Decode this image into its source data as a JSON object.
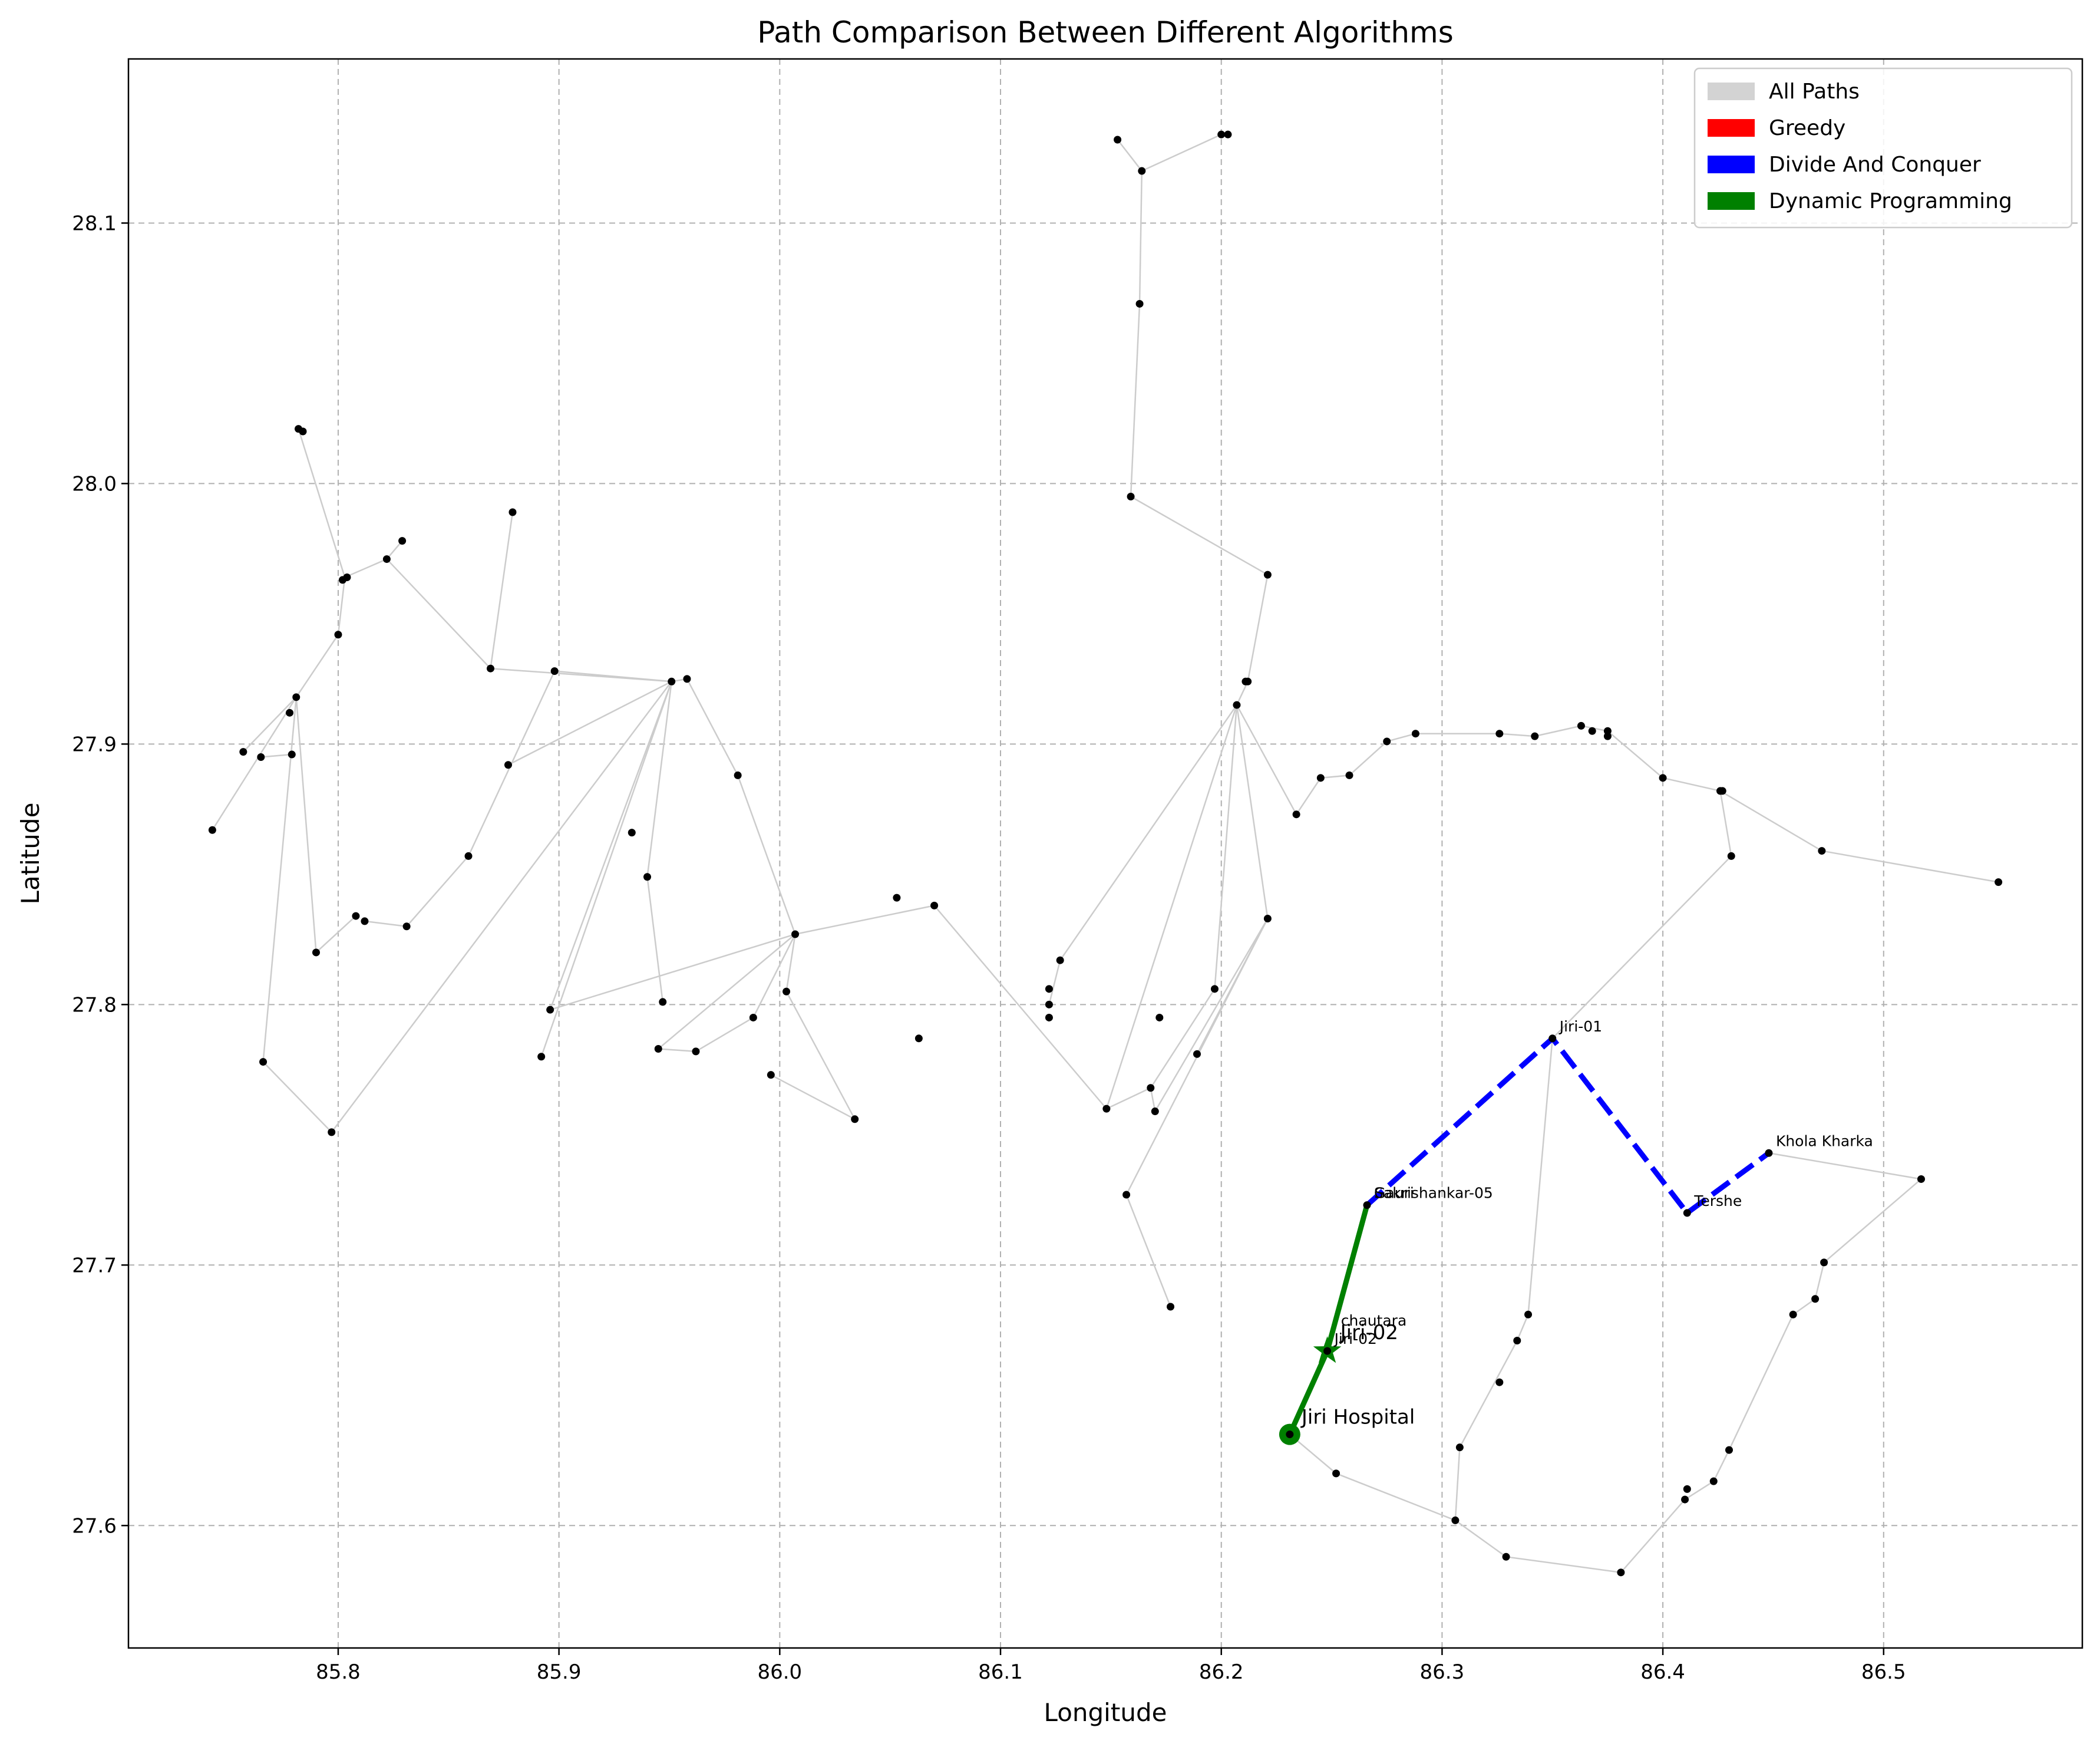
{
  "chart_data": {
    "type": "line",
    "title": "Path Comparison Between Different Algorithms",
    "xlabel": "Longitude",
    "ylabel": "Latitude",
    "xlim": [
      85.705,
      86.59
    ],
    "ylim": [
      27.553,
      28.163
    ],
    "xticks": [
      85.8,
      85.9,
      86.0,
      86.1,
      86.2,
      86.3,
      86.4,
      86.5
    ],
    "yticks": [
      27.6,
      27.7,
      27.8,
      27.9,
      28.0,
      28.1
    ],
    "xtick_labels": [
      "85.8",
      "85.9",
      "86.0",
      "86.1",
      "86.2",
      "86.3",
      "86.4",
      "86.5"
    ],
    "ytick_labels": [
      "27.6",
      "27.7",
      "27.8",
      "27.9",
      "28.0",
      "28.1"
    ],
    "grid": true,
    "legend_position": "top-right",
    "legend": [
      {
        "label": "All Paths",
        "color": "#d3d3d3"
      },
      {
        "label": "Greedy",
        "color": "#ff0000"
      },
      {
        "label": "Divide And Conquer",
        "color": "#0000ff"
      },
      {
        "label": "Dynamic Programming",
        "color": "#008000"
      }
    ],
    "colors": {
      "all_paths": "#cccccc",
      "greedy": "#ff0000",
      "divide_and_conquer": "#0000ff",
      "dynamic_programming": "#008000",
      "node": "#000000",
      "grid": "#b0b0b0"
    },
    "nodes": [
      [
        85.782,
        28.021
      ],
      [
        85.784,
        28.02
      ],
      [
        85.743,
        27.867
      ],
      [
        85.757,
        27.897
      ],
      [
        85.765,
        27.895
      ],
      [
        85.779,
        27.896
      ],
      [
        85.778,
        27.912
      ],
      [
        85.781,
        27.918
      ],
      [
        85.766,
        27.778
      ],
      [
        85.79,
        27.82
      ],
      [
        85.797,
        27.751
      ],
      [
        85.8,
        27.942
      ],
      [
        85.802,
        27.963
      ],
      [
        85.804,
        27.964
      ],
      [
        85.822,
        27.971
      ],
      [
        85.829,
        27.978
      ],
      [
        85.808,
        27.834
      ],
      [
        85.812,
        27.832
      ],
      [
        85.831,
        27.83
      ],
      [
        85.859,
        27.857
      ],
      [
        85.869,
        27.929
      ],
      [
        85.879,
        27.989
      ],
      [
        85.877,
        27.892
      ],
      [
        85.898,
        27.928
      ],
      [
        85.951,
        27.924
      ],
      [
        85.958,
        27.925
      ],
      [
        85.981,
        27.888
      ],
      [
        85.933,
        27.866
      ],
      [
        85.94,
        27.849
      ],
      [
        85.947,
        27.801
      ],
      [
        85.945,
        27.783
      ],
      [
        85.962,
        27.782
      ],
      [
        85.988,
        27.795
      ],
      [
        85.996,
        27.773
      ],
      [
        85.896,
        27.798
      ],
      [
        85.892,
        27.78
      ],
      [
        86.007,
        27.827
      ],
      [
        86.003,
        27.805
      ],
      [
        86.034,
        27.756
      ],
      [
        86.053,
        27.841
      ],
      [
        86.07,
        27.838
      ],
      [
        86.063,
        27.787
      ],
      [
        86.127,
        27.817
      ],
      [
        86.122,
        27.806
      ],
      [
        86.122,
        27.8
      ],
      [
        86.122,
        27.795
      ],
      [
        86.148,
        27.76
      ],
      [
        86.157,
        27.727
      ],
      [
        86.177,
        27.684
      ],
      [
        86.168,
        27.768
      ],
      [
        86.17,
        27.759
      ],
      [
        86.172,
        27.795
      ],
      [
        86.189,
        27.781
      ],
      [
        86.197,
        27.806
      ],
      [
        86.207,
        27.915
      ],
      [
        86.211,
        27.924
      ],
      [
        86.212,
        27.924
      ],
      [
        86.221,
        27.833
      ],
      [
        86.221,
        27.965
      ],
      [
        86.159,
        27.995
      ],
      [
        86.163,
        28.069
      ],
      [
        86.164,
        28.12
      ],
      [
        86.153,
        28.132
      ],
      [
        86.2,
        28.134
      ],
      [
        86.203,
        28.134
      ],
      [
        86.234,
        27.873
      ],
      [
        86.245,
        27.887
      ],
      [
        86.258,
        27.888
      ],
      [
        86.275,
        27.901
      ],
      [
        86.288,
        27.904
      ],
      [
        86.326,
        27.904
      ],
      [
        86.342,
        27.903
      ],
      [
        86.363,
        27.907
      ],
      [
        86.368,
        27.905
      ],
      [
        86.375,
        27.903
      ],
      [
        86.375,
        27.905
      ],
      [
        86.4,
        27.887
      ],
      [
        86.426,
        27.882
      ],
      [
        86.427,
        27.882
      ],
      [
        86.431,
        27.857
      ],
      [
        86.472,
        27.859
      ],
      [
        86.552,
        27.847
      ],
      [
        86.517,
        27.733
      ],
      [
        86.448,
        27.743
      ],
      [
        86.473,
        27.701
      ],
      [
        86.469,
        27.687
      ],
      [
        86.459,
        27.681
      ],
      [
        86.43,
        27.629
      ],
      [
        86.423,
        27.617
      ],
      [
        86.411,
        27.614
      ],
      [
        86.41,
        27.61
      ],
      [
        86.381,
        27.582
      ],
      [
        86.329,
        27.588
      ],
      [
        86.306,
        27.602
      ],
      [
        86.308,
        27.63
      ],
      [
        86.326,
        27.655
      ],
      [
        86.334,
        27.671
      ],
      [
        86.339,
        27.681
      ],
      [
        86.252,
        27.62
      ],
      [
        86.231,
        27.635
      ],
      [
        86.248,
        27.667
      ],
      [
        86.266,
        27.723
      ],
      [
        86.35,
        27.787
      ],
      [
        86.411,
        27.72
      ]
    ],
    "edges": [
      [
        [
          85.782,
          28.021
        ],
        [
          85.803,
          27.964
        ]
      ],
      [
        [
          85.803,
          27.964
        ],
        [
          85.8,
          27.942
        ]
      ],
      [
        [
          85.8,
          27.942
        ],
        [
          85.781,
          27.918
        ]
      ],
      [
        [
          85.781,
          27.918
        ],
        [
          85.743,
          27.867
        ]
      ],
      [
        [
          85.781,
          27.918
        ],
        [
          85.757,
          27.897
        ]
      ],
      [
        [
          85.781,
          27.918
        ],
        [
          85.766,
          27.778
        ]
      ],
      [
        [
          85.781,
          27.918
        ],
        [
          85.79,
          27.82
        ]
      ],
      [
        [
          85.765,
          27.895
        ],
        [
          85.779,
          27.896
        ]
      ],
      [
        [
          85.766,
          27.778
        ],
        [
          85.797,
          27.751
        ]
      ],
      [
        [
          85.797,
          27.751
        ],
        [
          85.951,
          27.924
        ]
      ],
      [
        [
          85.79,
          27.82
        ],
        [
          85.808,
          27.834
        ]
      ],
      [
        [
          85.812,
          27.832
        ],
        [
          85.831,
          27.83
        ]
      ],
      [
        [
          85.831,
          27.83
        ],
        [
          85.859,
          27.857
        ]
      ],
      [
        [
          85.859,
          27.857
        ],
        [
          85.898,
          27.928
        ]
      ],
      [
        [
          85.803,
          27.964
        ],
        [
          85.822,
          27.971
        ]
      ],
      [
        [
          85.822,
          27.971
        ],
        [
          85.869,
          27.929
        ]
      ],
      [
        [
          85.822,
          27.971
        ],
        [
          85.829,
          27.978
        ]
      ],
      [
        [
          85.869,
          27.929
        ],
        [
          85.879,
          27.989
        ]
      ],
      [
        [
          85.869,
          27.929
        ],
        [
          85.951,
          27.924
        ]
      ],
      [
        [
          85.898,
          27.928
        ],
        [
          85.951,
          27.924
        ]
      ],
      [
        [
          85.877,
          27.892
        ],
        [
          85.951,
          27.924
        ]
      ],
      [
        [
          85.951,
          27.924
        ],
        [
          85.958,
          27.925
        ]
      ],
      [
        [
          85.958,
          27.925
        ],
        [
          85.981,
          27.888
        ]
      ],
      [
        [
          85.981,
          27.888
        ],
        [
          86.007,
          27.827
        ]
      ],
      [
        [
          85.951,
          27.924
        ],
        [
          85.94,
          27.849
        ]
      ],
      [
        [
          85.94,
          27.849
        ],
        [
          85.947,
          27.801
        ]
      ],
      [
        [
          85.951,
          27.924
        ],
        [
          85.896,
          27.798
        ]
      ],
      [
        [
          85.951,
          27.924
        ],
        [
          85.892,
          27.78
        ]
      ],
      [
        [
          85.896,
          27.798
        ],
        [
          86.007,
          27.827
        ]
      ],
      [
        [
          86.007,
          27.827
        ],
        [
          85.945,
          27.783
        ]
      ],
      [
        [
          85.945,
          27.783
        ],
        [
          85.962,
          27.782
        ]
      ],
      [
        [
          86.007,
          27.827
        ],
        [
          85.988,
          27.795
        ]
      ],
      [
        [
          85.988,
          27.795
        ],
        [
          85.962,
          27.782
        ]
      ],
      [
        [
          86.007,
          27.827
        ],
        [
          86.003,
          27.805
        ]
      ],
      [
        [
          86.003,
          27.805
        ],
        [
          86.034,
          27.756
        ]
      ],
      [
        [
          86.034,
          27.756
        ],
        [
          85.996,
          27.773
        ]
      ],
      [
        [
          86.007,
          27.827
        ],
        [
          86.07,
          27.838
        ]
      ],
      [
        [
          86.07,
          27.838
        ],
        [
          86.148,
          27.76
        ]
      ],
      [
        [
          86.148,
          27.76
        ],
        [
          86.207,
          27.915
        ]
      ],
      [
        [
          86.207,
          27.915
        ],
        [
          86.127,
          27.817
        ]
      ],
      [
        [
          86.127,
          27.817
        ],
        [
          86.122,
          27.8
        ]
      ],
      [
        [
          86.207,
          27.915
        ],
        [
          86.212,
          27.924
        ]
      ],
      [
        [
          86.212,
          27.924
        ],
        [
          86.221,
          27.965
        ]
      ],
      [
        [
          86.221,
          27.965
        ],
        [
          86.159,
          27.995
        ]
      ],
      [
        [
          86.159,
          27.995
        ],
        [
          86.163,
          28.069
        ]
      ],
      [
        [
          86.163,
          28.069
        ],
        [
          86.164,
          28.12
        ]
      ],
      [
        [
          86.164,
          28.12
        ],
        [
          86.153,
          28.132
        ]
      ],
      [
        [
          86.164,
          28.12
        ],
        [
          86.2,
          28.134
        ]
      ],
      [
        [
          86.207,
          27.915
        ],
        [
          86.221,
          27.833
        ]
      ],
      [
        [
          86.221,
          27.833
        ],
        [
          86.17,
          27.759
        ]
      ],
      [
        [
          86.221,
          27.833
        ],
        [
          86.157,
          27.727
        ]
      ],
      [
        [
          86.157,
          27.727
        ],
        [
          86.177,
          27.684
        ]
      ],
      [
        [
          86.17,
          27.759
        ],
        [
          86.168,
          27.768
        ]
      ],
      [
        [
          86.148,
          27.76
        ],
        [
          86.168,
          27.768
        ]
      ],
      [
        [
          86.168,
          27.768
        ],
        [
          86.197,
          27.806
        ]
      ],
      [
        [
          86.207,
          27.915
        ],
        [
          86.197,
          27.806
        ]
      ],
      [
        [
          86.221,
          27.833
        ],
        [
          86.189,
          27.781
        ]
      ],
      [
        [
          86.207,
          27.915
        ],
        [
          86.234,
          27.873
        ]
      ],
      [
        [
          86.234,
          27.873
        ],
        [
          86.245,
          27.887
        ]
      ],
      [
        [
          86.245,
          27.887
        ],
        [
          86.258,
          27.888
        ]
      ],
      [
        [
          86.258,
          27.888
        ],
        [
          86.275,
          27.901
        ]
      ],
      [
        [
          86.275,
          27.901
        ],
        [
          86.288,
          27.904
        ]
      ],
      [
        [
          86.288,
          27.904
        ],
        [
          86.326,
          27.904
        ]
      ],
      [
        [
          86.326,
          27.904
        ],
        [
          86.342,
          27.903
        ]
      ],
      [
        [
          86.342,
          27.903
        ],
        [
          86.363,
          27.907
        ]
      ],
      [
        [
          86.363,
          27.907
        ],
        [
          86.375,
          27.905
        ]
      ],
      [
        [
          86.375,
          27.905
        ],
        [
          86.4,
          27.887
        ]
      ],
      [
        [
          86.4,
          27.887
        ],
        [
          86.426,
          27.882
        ]
      ],
      [
        [
          86.426,
          27.882
        ],
        [
          86.431,
          27.857
        ]
      ],
      [
        [
          86.426,
          27.882
        ],
        [
          86.472,
          27.859
        ]
      ],
      [
        [
          86.472,
          27.859
        ],
        [
          86.552,
          27.847
        ]
      ],
      [
        [
          86.431,
          27.857
        ],
        [
          86.35,
          27.787
        ]
      ],
      [
        [
          86.35,
          27.787
        ],
        [
          86.339,
          27.681
        ]
      ],
      [
        [
          86.339,
          27.681
        ],
        [
          86.334,
          27.671
        ]
      ],
      [
        [
          86.334,
          27.671
        ],
        [
          86.308,
          27.63
        ]
      ],
      [
        [
          86.308,
          27.63
        ],
        [
          86.306,
          27.602
        ]
      ],
      [
        [
          86.306,
          27.602
        ],
        [
          86.329,
          27.588
        ]
      ],
      [
        [
          86.329,
          27.588
        ],
        [
          86.381,
          27.582
        ]
      ],
      [
        [
          86.381,
          27.582
        ],
        [
          86.41,
          27.61
        ]
      ],
      [
        [
          86.41,
          27.61
        ],
        [
          86.423,
          27.617
        ]
      ],
      [
        [
          86.423,
          27.617
        ],
        [
          86.43,
          27.629
        ]
      ],
      [
        [
          86.43,
          27.629
        ],
        [
          86.459,
          27.681
        ]
      ],
      [
        [
          86.459,
          27.681
        ],
        [
          86.469,
          27.687
        ]
      ],
      [
        [
          86.469,
          27.687
        ],
        [
          86.473,
          27.701
        ]
      ],
      [
        [
          86.473,
          27.701
        ],
        [
          86.517,
          27.733
        ]
      ],
      [
        [
          86.517,
          27.733
        ],
        [
          86.448,
          27.743
        ]
      ],
      [
        [
          86.306,
          27.602
        ],
        [
          86.252,
          27.62
        ]
      ],
      [
        [
          86.252,
          27.62
        ],
        [
          86.231,
          27.635
        ]
      ]
    ],
    "divide_and_conquer_path": [
      [
        86.266,
        27.723
      ],
      [
        86.35,
        27.787
      ],
      [
        86.411,
        27.72
      ],
      [
        86.448,
        27.743
      ]
    ],
    "dynamic_programming_path": [
      [
        86.231,
        27.635
      ],
      [
        86.248,
        27.667
      ],
      [
        86.266,
        27.723
      ]
    ],
    "greedy_path": [],
    "start": {
      "x": 86.231,
      "y": 27.635,
      "label": "Jiri Hospital"
    },
    "end": {
      "x": 86.248,
      "y": 27.667,
      "label": "Jiri-02"
    },
    "node_labels": [
      {
        "text": "Jiri-01",
        "x": 86.35,
        "y": 27.787
      },
      {
        "text": "Khola Kharka",
        "x": 86.448,
        "y": 27.743
      },
      {
        "text": "Tershe",
        "x": 86.411,
        "y": 27.72
      },
      {
        "text": "Sakrishankar-05",
        "x": 86.266,
        "y": 27.723
      },
      {
        "text": "Gauri",
        "x": 86.266,
        "y": 27.723
      },
      {
        "text": "chautara",
        "x": 86.251,
        "y": 27.674
      },
      {
        "text": "Jiri-02",
        "x": 86.248,
        "y": 27.667
      }
    ]
  }
}
